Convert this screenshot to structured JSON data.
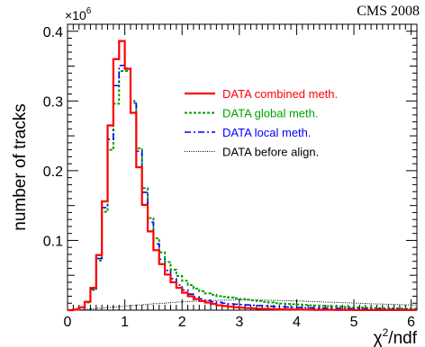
{
  "chart_data": {
    "type": "line",
    "title": "",
    "annotation": "CMS 2008",
    "xlabel": "χ²/ndf",
    "xlabel_main": "χ",
    "xlabel_sup": "2",
    "xlabel_rest": "/ndf",
    "ylabel": "number of tracks",
    "y_multiplier": "×10⁶",
    "y_multiplier_base": "×10",
    "y_multiplier_exp": "6",
    "xlim": [
      0,
      6.1
    ],
    "ylim": [
      0,
      0.41
    ],
    "x_ticks": [
      0,
      1,
      2,
      3,
      4,
      5,
      6
    ],
    "x_tick_labels": [
      "0",
      "1",
      "2",
      "3",
      "4",
      "5",
      "6"
    ],
    "y_ticks": [
      0.1,
      0.2,
      0.3,
      0.4
    ],
    "y_tick_labels": [
      "0.1",
      "0.2",
      "0.3",
      "0.4"
    ],
    "bin_width": 0.1,
    "legend_position": "top-right",
    "series": [
      {
        "name": "DATA combined meth.",
        "color": "#ff0000",
        "style": "solid",
        "values": [
          0,
          0.001,
          0.004,
          0.012,
          0.032,
          0.079,
          0.156,
          0.265,
          0.36,
          0.386,
          0.346,
          0.283,
          0.205,
          0.151,
          0.113,
          0.086,
          0.066,
          0.051,
          0.04,
          0.032,
          0.025,
          0.02,
          0.016,
          0.013,
          0.011,
          0.009,
          0.007,
          0.006,
          0.005,
          0.004,
          0.0035,
          0.003,
          0.0025,
          0.002,
          0.0018,
          0.0015,
          0.0013,
          0.0011,
          0.001,
          0.0009,
          0.0008,
          0.0007,
          0.0006,
          0.0005,
          0.0005,
          0.0004,
          0.0004,
          0.0003,
          0.0003,
          0.0003,
          0.0002,
          0.0002,
          0.0002,
          0.0002,
          0.0001,
          0.0001,
          0.0001,
          0.0001,
          0.0001,
          0.0001,
          0.0001
        ]
      },
      {
        "name": "DATA global meth.",
        "color": "#00a000",
        "style": "dotted",
        "values": [
          0,
          0.001,
          0.004,
          0.011,
          0.029,
          0.071,
          0.141,
          0.23,
          0.296,
          0.343,
          0.343,
          0.297,
          0.232,
          0.175,
          0.132,
          0.103,
          0.083,
          0.069,
          0.058,
          0.049,
          0.042,
          0.036,
          0.031,
          0.027,
          0.024,
          0.022,
          0.02,
          0.019,
          0.018,
          0.017,
          0.016,
          0.015,
          0.014,
          0.013,
          0.012,
          0.011,
          0.01,
          0.0095,
          0.009,
          0.0085,
          0.008,
          0.0075,
          0.007,
          0.0066,
          0.0062,
          0.0058,
          0.0054,
          0.005,
          0.0047,
          0.0044,
          0.0041,
          0.0038,
          0.0035,
          0.0033,
          0.0031,
          0.0029,
          0.0027,
          0.0025,
          0.0023,
          0.0021,
          0.002
        ]
      },
      {
        "name": "DATA local meth.",
        "color": "#0000ff",
        "style": "dashdot",
        "values": [
          0,
          0.001,
          0.004,
          0.012,
          0.03,
          0.074,
          0.147,
          0.245,
          0.322,
          0.351,
          0.347,
          0.3,
          0.228,
          0.169,
          0.126,
          0.095,
          0.073,
          0.057,
          0.045,
          0.036,
          0.029,
          0.023,
          0.019,
          0.016,
          0.014,
          0.012,
          0.011,
          0.01,
          0.009,
          0.0085,
          0.008,
          0.0075,
          0.007,
          0.0065,
          0.006,
          0.0055,
          0.005,
          0.0047,
          0.0044,
          0.0041,
          0.0038,
          0.0035,
          0.0033,
          0.0031,
          0.0029,
          0.0027,
          0.0025,
          0.0023,
          0.0021,
          0.002,
          0.0019,
          0.0018,
          0.0017,
          0.0016,
          0.0015,
          0.0014,
          0.0013,
          0.0012,
          0.0011,
          0.001,
          0.001
        ]
      },
      {
        "name": "DATA before align.",
        "color": "#000000",
        "style": "dotted-fine",
        "values": [
          0,
          0.0005,
          0.001,
          0.0015,
          0.002,
          0.0027,
          0.0033,
          0.004,
          0.0047,
          0.0053,
          0.006,
          0.0067,
          0.0074,
          0.008,
          0.0087,
          0.0093,
          0.0099,
          0.0105,
          0.0111,
          0.0116,
          0.0121,
          0.0126,
          0.013,
          0.0134,
          0.0137,
          0.014,
          0.0142,
          0.0144,
          0.0145,
          0.0146,
          0.0146,
          0.0146,
          0.0145,
          0.0144,
          0.0143,
          0.0141,
          0.0139,
          0.0137,
          0.0135,
          0.0132,
          0.013,
          0.0127,
          0.0124,
          0.0121,
          0.0118,
          0.0115,
          0.0112,
          0.0109,
          0.0106,
          0.0103,
          0.01,
          0.0097,
          0.0094,
          0.0091,
          0.0088,
          0.0085,
          0.0083,
          0.008,
          0.0078,
          0.0076,
          0.0074
        ]
      }
    ]
  }
}
